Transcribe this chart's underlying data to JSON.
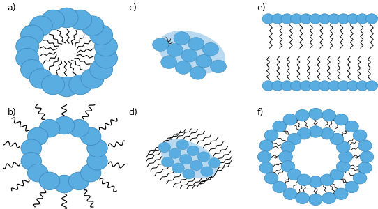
{
  "blue_head": "#5aade0",
  "blue_head_edge": "#3a8bbf",
  "blue_fill_light": "#b8d9f0",
  "bg_color": "#ffffff",
  "label_fontsize": 9,
  "panels": [
    "a",
    "b",
    "c",
    "d",
    "e",
    "f"
  ]
}
